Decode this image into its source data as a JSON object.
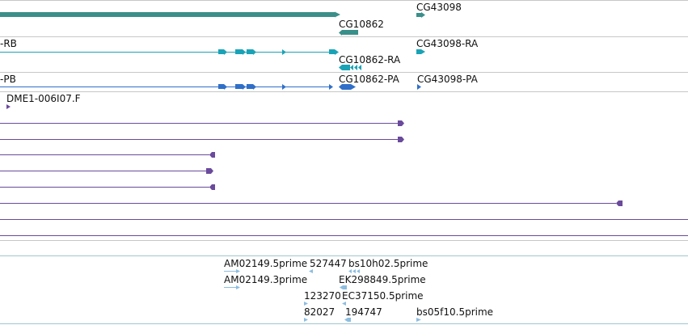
{
  "colors": {
    "track_separator": "#c7c7c7",
    "gene_dark_teal": "#3a8f8a",
    "transcript_teal": "#1aa3b6",
    "transcript_blue": "#2f6fc9",
    "cdna_purple": "#6a4a9c",
    "est_light_blue": "#8dbde0",
    "bottom_track_border": "#9fc8cf"
  },
  "tracks": {
    "genes": {
      "labels": {
        "cg43098": "CG43098",
        "cg10862": "CG10862"
      }
    },
    "transcripts_ra": {
      "labels": {
        "cut_left": "-RB",
        "cg10862_ra": "CG10862-RA",
        "cg43098_ra": "CG43098-RA"
      }
    },
    "transcripts_pa": {
      "labels": {
        "cut_left": "-PB",
        "cg10862_pa": "CG10862-PA",
        "cg43098_pa": "CG43098-PA"
      }
    },
    "cdna": {
      "labels": {
        "dme1": "DME1-006I07.F"
      }
    },
    "ests": {
      "labels": {
        "am02149_5": "AM02149.5prime",
        "n527447": "527447",
        "bs10h02": "bs10h02.5prime",
        "am02149_3": "AM02149.3prime",
        "ek298849": "EK298849.5prime",
        "n123270": "123270",
        "ec37150": "EC37150.5prime",
        "n82027": "82027",
        "n194747": "194747",
        "bs05f10": "bs05f10.5prime"
      }
    }
  }
}
